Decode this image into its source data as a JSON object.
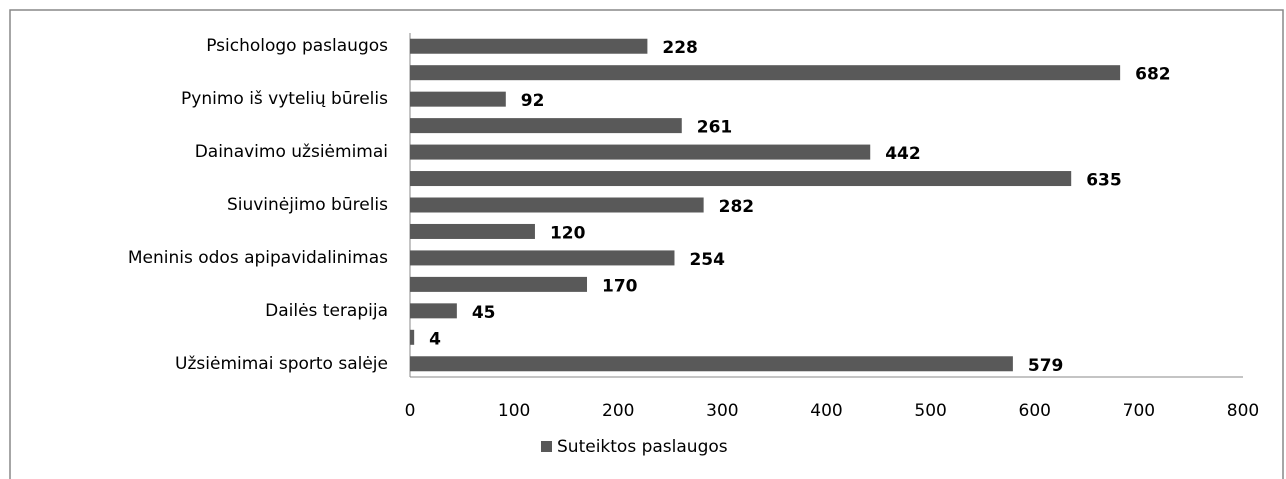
{
  "chart_data": {
    "type": "hbar",
    "categories": [
      "Psichologo paslaugos",
      null,
      "Pynimo iš vytelių būrelis",
      null,
      "Dainavimo užsiėmimai",
      null,
      "Siuvinėjimo būrelis",
      null,
      "Meninis odos apipavidalinimas",
      null,
      "Dailės terapija",
      null,
      "Užsiėmimai sporto salėje"
    ],
    "series": [
      {
        "name": "Suteiktos paslaugos",
        "color": "#595959",
        "values": [
          228,
          682,
          92,
          261,
          442,
          635,
          282,
          120,
          254,
          170,
          45,
          4,
          579
        ]
      }
    ],
    "xlim": [
      0,
      800
    ],
    "xticks": [
      0,
      100,
      200,
      300,
      400,
      500,
      600,
      700,
      800
    ],
    "legend": "bottom",
    "grid": false
  }
}
